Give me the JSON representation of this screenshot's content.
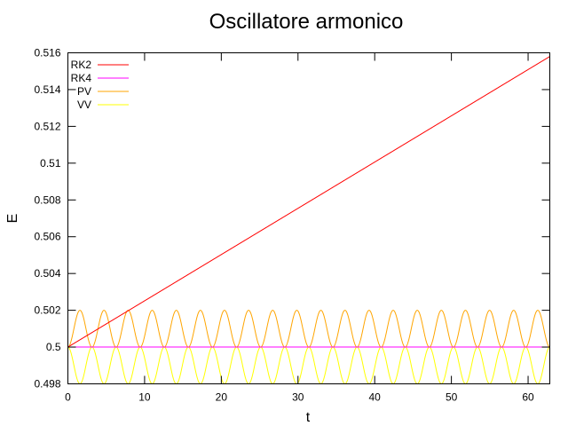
{
  "chart_data": {
    "type": "line",
    "title": "Oscillatore armonico",
    "xlabel": "t",
    "ylabel": "E",
    "xlim": [
      0,
      62.83
    ],
    "ylim": [
      0.498,
      0.516
    ],
    "xticks": [
      0,
      10,
      20,
      30,
      40,
      50,
      60
    ],
    "yticks": [
      0.498,
      0.5,
      0.502,
      0.504,
      0.506,
      0.508,
      0.51,
      0.512,
      0.514,
      0.516
    ],
    "ytick_labels": [
      "0.498",
      "0.5",
      "0.502",
      "0.504",
      "0.506",
      "0.508",
      "0.51",
      "0.512",
      "0.514",
      "0.516"
    ],
    "grid": false,
    "legend_position": "top-left",
    "series": [
      {
        "name": "RK2",
        "color": "#ff0000",
        "kind": "linear",
        "start": 0.5,
        "end": 0.5158
      },
      {
        "name": "RK4",
        "color": "#ff00ff",
        "kind": "constant",
        "value": 0.5
      },
      {
        "name": "PV",
        "color": "#ffa500",
        "kind": "oscillation",
        "base": 0.5,
        "amplitude": 0.002,
        "period": 3.1416,
        "sign": 1
      },
      {
        "name": "VV",
        "color": "#ffff00",
        "kind": "oscillation",
        "base": 0.5,
        "amplitude": 0.002,
        "period": 3.1416,
        "sign": -1
      }
    ]
  }
}
